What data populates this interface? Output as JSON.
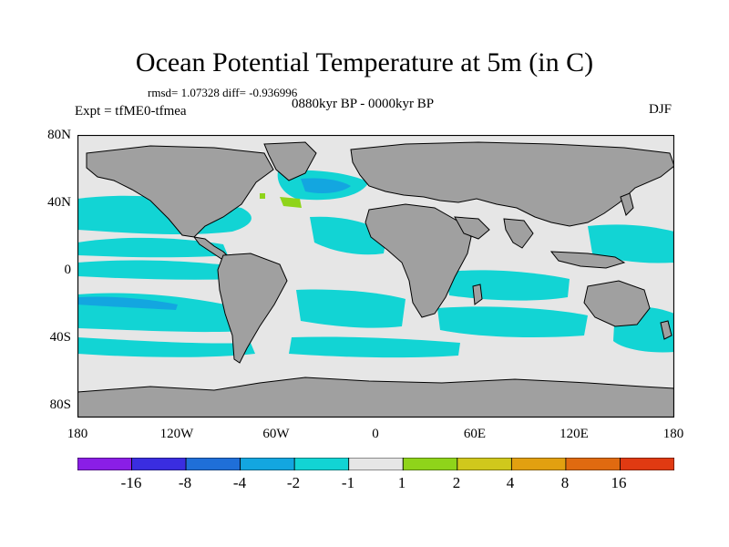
{
  "title": "Ocean Potential Temperature at 5m (in C)",
  "stats": "rmsd= 1.07328 diff= -0.936996",
  "period": "0880kyr BP - 0000kyr BP",
  "experiment": "Expt = tfME0-tfmea",
  "season": "DJF",
  "lat_ticks": [
    "80N",
    "40N",
    "0",
    "40S",
    "80S"
  ],
  "lon_ticks": [
    "180",
    "120W",
    "60W",
    "0",
    "60E",
    "120E",
    "180"
  ],
  "colorbar": {
    "colors": [
      "#8a1ee6",
      "#3a2de0",
      "#1f6fd8",
      "#13a6e0",
      "#12d4d4",
      "#e6e6e6",
      "#8fd41a",
      "#d0c81c",
      "#e2a010",
      "#e06a10",
      "#e03a12"
    ],
    "labels": [
      "-16",
      "-8",
      "-4",
      "-2",
      "-1",
      "1",
      "2",
      "4",
      "8",
      "16"
    ]
  },
  "map_colors": {
    "land": "#a0a0a0",
    "neutral": "#e6e6e6",
    "cool": "#12d4d4",
    "cooler": "#13a6e0",
    "warm": "#8fd41a"
  }
}
